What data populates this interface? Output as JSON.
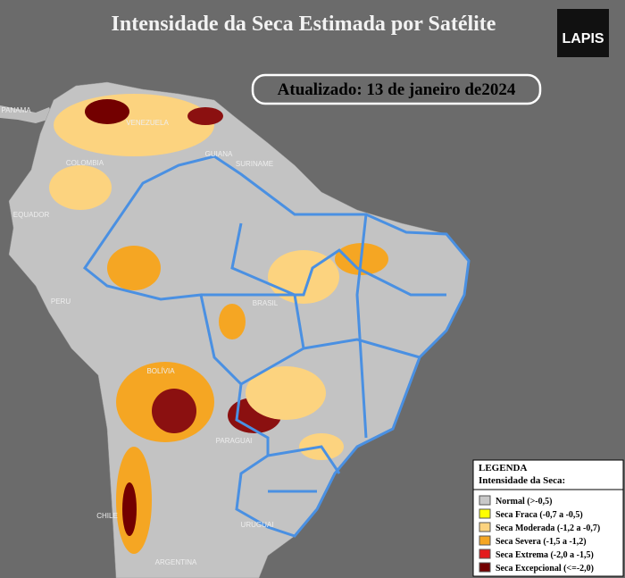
{
  "header": {
    "title": "Intensidade da Seca Estimada por Satélite",
    "updated": "Atualizado: 13 de janeiro de2024",
    "logo": "LAPIS"
  },
  "map": {
    "labels": [
      "PANAMA",
      "VENEZUELA",
      "COLOMBIA",
      "GUIANA",
      "SURINAME",
      "EQUADOR",
      "PERU",
      "BRASIL",
      "BOLÍVIA",
      "PARAGUAI",
      "CHILE",
      "ARGENTINA",
      "URUGUAI"
    ]
  },
  "legend": {
    "title": "LEGENDA",
    "subtitle": "Intensidade da Seca:",
    "items": [
      {
        "label": "Normal (>-0,5)",
        "color": "#c8c8c8"
      },
      {
        "label": "Seca Fraca (-0,7 a -0,5)",
        "color": "#ffff00"
      },
      {
        "label": "Seca Moderada (-1,2 a -0,7)",
        "color": "#fcd37f"
      },
      {
        "label": "Seca Severa (-1,5 a -1,2)",
        "color": "#f5a623"
      },
      {
        "label": "Seca Extrema (-2,0 a -1,5)",
        "color": "#e31a1c"
      },
      {
        "label": "Seca Excepcional (<=-2,0)",
        "color": "#730000"
      }
    ]
  }
}
